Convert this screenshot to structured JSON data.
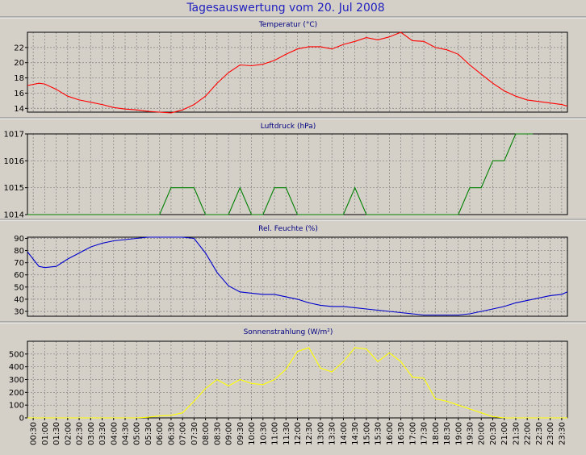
{
  "title": "Tagesauswertung vom 20. Jul 2008",
  "x_ticks": [
    "00:30",
    "01:00",
    "01:30",
    "02:00",
    "02:30",
    "03:00",
    "03:30",
    "04:00",
    "04:30",
    "05:00",
    "05:30",
    "06:00",
    "06:30",
    "07:00",
    "07:30",
    "08:00",
    "08:30",
    "09:00",
    "09:30",
    "10:00",
    "10:30",
    "11:00",
    "11:30",
    "12:00",
    "12:30",
    "13:00",
    "13:30",
    "14:00",
    "14:30",
    "15:00",
    "15:30",
    "16:00",
    "16:30",
    "17:00",
    "17:30",
    "18:00",
    "18:30",
    "19:00",
    "19:30",
    "20:00",
    "20:30",
    "21:00",
    "21:30",
    "22:00",
    "22:30",
    "23:00",
    "23:30"
  ],
  "chart_data": [
    {
      "type": "line",
      "title": "Temperatur (°C)",
      "color": "#ff0000",
      "ylim": [
        13.5,
        24
      ],
      "y_ticks": [
        14,
        16,
        18,
        20,
        22
      ],
      "x_range": [
        0.25,
        23.75
      ],
      "grid": true,
      "x": [
        0.25,
        0.75,
        1,
        1.5,
        2,
        2.5,
        3,
        3.5,
        4,
        4.5,
        5,
        5.5,
        6,
        6.5,
        7,
        7.5,
        8,
        8.5,
        9,
        9.5,
        10,
        10.5,
        11,
        11.5,
        12,
        12.5,
        13,
        13.5,
        14,
        14.5,
        15,
        15.5,
        16,
        16.5,
        17,
        17.5,
        18,
        18.5,
        19,
        19.5,
        20,
        20.5,
        21,
        21.5,
        22,
        22.5,
        23,
        23.5,
        23.75
      ],
      "values": [
        17.0,
        17.3,
        17.2,
        16.5,
        15.6,
        15.1,
        14.8,
        14.5,
        14.1,
        13.9,
        13.8,
        13.6,
        13.5,
        13.4,
        13.8,
        14.5,
        15.6,
        17.3,
        18.7,
        19.7,
        19.6,
        19.8,
        20.3,
        21.1,
        21.8,
        22.1,
        22.1,
        21.8,
        22.4,
        22.8,
        23.3,
        23.0,
        23.4,
        24.0,
        22.9,
        22.8,
        22.0,
        21.7,
        21.1,
        19.7,
        18.5,
        17.3,
        16.3,
        15.6,
        15.1,
        14.9,
        14.7,
        14.5,
        14.3
      ]
    },
    {
      "type": "line",
      "title": "Luftdruck (hPa)",
      "color": "#008000",
      "ylim": [
        1014,
        1017
      ],
      "y_ticks": [
        1014,
        1015,
        1016,
        1017
      ],
      "x_range": [
        0.25,
        23.75
      ],
      "grid": true,
      "x": [
        0.25,
        6,
        6.5,
        7.5,
        8,
        9,
        9.5,
        10,
        10.5,
        11,
        11.5,
        12,
        14,
        14.5,
        15,
        19,
        19.5,
        20,
        20.5,
        21,
        21.5,
        22,
        22.25
      ],
      "values": [
        1014,
        1014,
        1015,
        1015,
        1014,
        1014,
        1015,
        1014,
        1014,
        1015,
        1015,
        1014,
        1014,
        1015,
        1014,
        1014,
        1015,
        1015,
        1016,
        1016,
        1017,
        1017,
        1017
      ]
    },
    {
      "type": "line",
      "title": "Rel. Feuchte (%)",
      "color": "#0000cc",
      "ylim": [
        26,
        91
      ],
      "y_ticks": [
        30,
        40,
        50,
        60,
        70,
        80,
        90
      ],
      "x_range": [
        0.25,
        23.75
      ],
      "grid": true,
      "x": [
        0.25,
        0.75,
        1,
        1.5,
        2,
        2.5,
        3,
        3.5,
        4,
        4.5,
        5,
        5.5,
        6,
        7,
        7.5,
        8,
        8.5,
        9,
        9.5,
        10,
        10.5,
        11,
        11.5,
        12,
        12.5,
        13,
        13.5,
        14,
        14.5,
        15,
        15.5,
        16,
        16.5,
        17,
        17.5,
        18,
        18.5,
        19,
        19.5,
        20,
        20.5,
        21,
        21.5,
        22,
        22.5,
        23,
        23.5,
        23.75
      ],
      "values": [
        79,
        67,
        66,
        67,
        73,
        78,
        83,
        86,
        88,
        89,
        90,
        91,
        91,
        91,
        90,
        78,
        62,
        51,
        46,
        45,
        44,
        44,
        42,
        40,
        37,
        35,
        34,
        34,
        33,
        32,
        31,
        30,
        29,
        28,
        27,
        27,
        27,
        27,
        28,
        30,
        32,
        34,
        37,
        39,
        41,
        43,
        44,
        46
      ]
    },
    {
      "type": "line",
      "title": "Sonnenstrahlung (W/m²)",
      "color": "#ffff00",
      "ylim": [
        0,
        600
      ],
      "y_ticks": [
        0,
        100,
        200,
        300,
        400,
        500
      ],
      "x_range": [
        0.25,
        23.75
      ],
      "grid": true,
      "x": [
        0.25,
        5,
        5.5,
        6,
        6.5,
        7,
        7.5,
        8,
        8.5,
        9,
        9.5,
        10,
        10.5,
        11,
        11.5,
        12,
        12.5,
        13,
        13.5,
        14,
        14.5,
        15,
        15.5,
        16,
        16.5,
        17,
        17.5,
        18,
        18.5,
        19,
        19.5,
        20,
        20.5,
        21,
        21.5,
        22,
        22.5,
        23,
        23.5,
        23.75
      ],
      "values": [
        0,
        0,
        5,
        15,
        20,
        40,
        130,
        230,
        300,
        250,
        300,
        270,
        260,
        300,
        380,
        520,
        550,
        390,
        360,
        440,
        550,
        540,
        440,
        510,
        440,
        320,
        310,
        150,
        130,
        100,
        70,
        40,
        10,
        0,
        0,
        0,
        0,
        0,
        0,
        0
      ]
    }
  ]
}
